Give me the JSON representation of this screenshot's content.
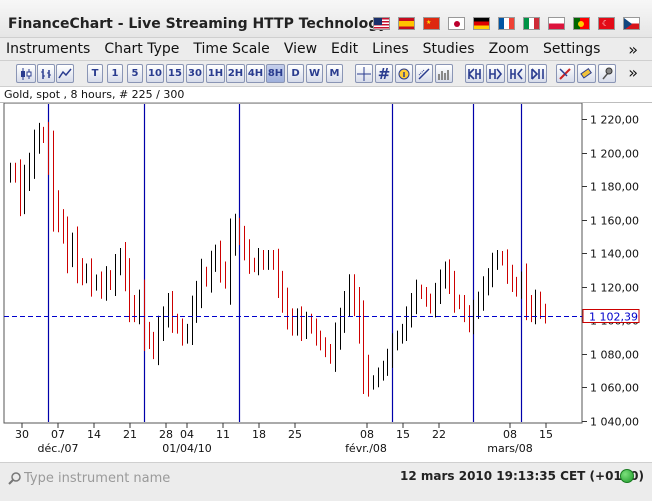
{
  "window": {
    "title": "FinanceChart - Live Streaming HTTP Technology",
    "language_flags": [
      "flag-us",
      "flag-es",
      "flag-cn",
      "flag-jp",
      "flag-de",
      "flag-fr",
      "flag-it",
      "flag-pl",
      "flag-pt",
      "flag-tr",
      "flag-cz"
    ]
  },
  "menu": {
    "items": [
      "Instruments",
      "Chart Type",
      "Time Scale",
      "View",
      "Edit",
      "Lines",
      "Studies",
      "Zoom",
      "Settings"
    ],
    "more": "»"
  },
  "toolbar": {
    "chart_type_icons": [
      "candlestick-icon",
      "bar-chart-icon",
      "line-chart-icon"
    ],
    "timescale_buttons": [
      "T",
      "1",
      "5",
      "10",
      "15",
      "30",
      "1H",
      "2H",
      "4H",
      "8H",
      "D",
      "W",
      "M"
    ],
    "selected_timescale": "8H",
    "tool_icons": [
      "crosshair-icon",
      "grid-icon",
      "info-icon",
      "line-tool-icon",
      "volume-icon",
      "zoom-in-icon",
      "zoom-out-icon",
      "pan-left-icon",
      "pan-right-icon",
      "pen-icon",
      "eraser-icon",
      "pin-icon"
    ],
    "more": "»"
  },
  "info": {
    "instrument_line": "Gold, spot , 8 hours, # 225 / 300"
  },
  "chart_data": {
    "type": "candlestick",
    "instrument": "Gold, spot",
    "interval": "8 hours",
    "y_ticks": [
      "1 220,00",
      "1 200,00",
      "1 180,00",
      "1 160,00",
      "1 140,00",
      "1 120,00",
      "1 100,00",
      "1 080,00",
      "1 060,00",
      "1 040,00"
    ],
    "ylim": [
      1040,
      1220
    ],
    "current_price_label": "1 102,39",
    "current_price": 1102.39,
    "x_ticks": [
      "30",
      "07",
      "14",
      "21",
      "28",
      "04",
      "11",
      "18",
      "25",
      "08",
      "15",
      "22",
      "08",
      "15"
    ],
    "x_month_labels": [
      "déc./07",
      "01/04/10",
      "févr./08",
      "mars/08"
    ],
    "close_series": [
      1190,
      1186,
      1172,
      1184,
      1193,
      1205,
      1212,
      1209,
      1196,
      1170,
      1160,
      1152,
      1138,
      1146,
      1132,
      1126,
      1130,
      1121,
      1124,
      1118,
      1126,
      1122,
      1132,
      1138,
      1126,
      1110,
      1104,
      1112,
      1094,
      1088,
      1082,
      1094,
      1102,
      1110,
      1100,
      1096,
      1090,
      1094,
      1106,
      1116,
      1128,
      1124,
      1134,
      1140,
      1130,
      1124,
      1146,
      1156,
      1150,
      1142,
      1134,
      1132,
      1138,
      1134,
      1138,
      1134,
      1122,
      1112,
      1102,
      1096,
      1102,
      1094,
      1100,
      1096,
      1090,
      1086,
      1082,
      1078,
      1090,
      1100,
      1110,
      1120,
      1110,
      1096,
      1072,
      1062,
      1064,
      1068,
      1072,
      1078,
      1086,
      1090,
      1094,
      1102,
      1110,
      1118,
      1116,
      1112,
      1108,
      1116,
      1124,
      1130,
      1122,
      1112,
      1110,
      1104,
      1098,
      1106,
      1112,
      1120,
      1126,
      1134,
      1138,
      1136,
      1128,
      1122,
      1118,
      1124,
      1110,
      1104,
      1112,
      1106,
      1102
    ],
    "vertical_markers_bar_index": [
      8,
      28,
      48,
      80,
      97,
      107
    ],
    "marker_color": "#0000aa",
    "bull_color": "#000000",
    "bear_color": "#cc0000",
    "price_line_color": "#0000cc"
  },
  "status": {
    "search_placeholder": "Type instrument name",
    "datetime": "12 mars 2010 19:13:35  CET (+0100)",
    "connection": "connected"
  }
}
